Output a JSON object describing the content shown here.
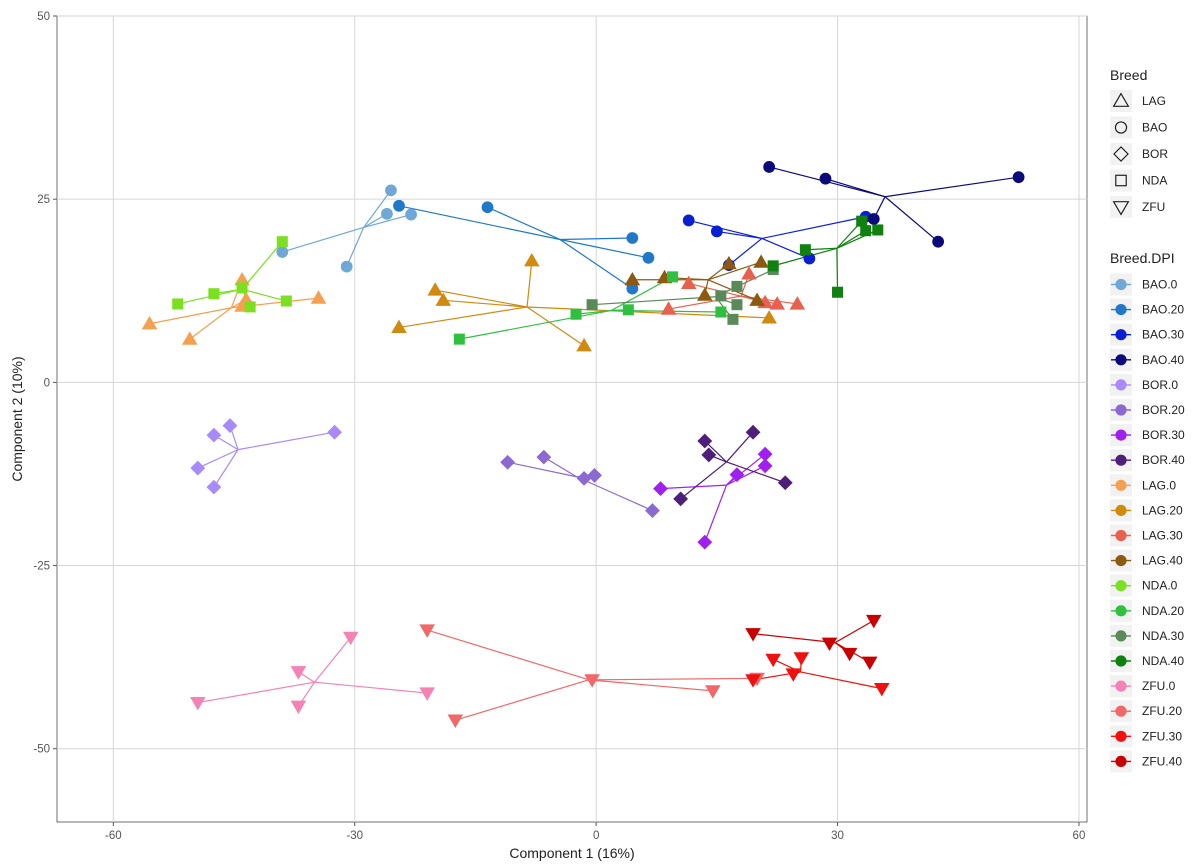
{
  "chart_data": {
    "type": "scatter",
    "title": "",
    "xlabel": "Component 1 (16%)",
    "ylabel": "Component 2 (10%)",
    "xlim": [
      -67,
      61
    ],
    "ylim": [
      -60,
      50
    ],
    "x_ticks": [
      -60,
      -30,
      0,
      30,
      60
    ],
    "y_ticks": [
      -50,
      -25,
      0,
      25,
      50
    ],
    "x_tick_labels": [
      "-60",
      "-30",
      "0",
      "30",
      "60"
    ],
    "y_tick_labels": [
      "-50",
      "-25",
      "0",
      "25",
      "50"
    ],
    "grid": true,
    "legend_position": "right",
    "legends": {
      "shape_title": "Breed",
      "shapes": [
        {
          "label": "LAG",
          "shape": "triangle-up"
        },
        {
          "label": "BAO",
          "shape": "circle"
        },
        {
          "label": "BOR",
          "shape": "diamond"
        },
        {
          "label": "NDA",
          "shape": "square"
        },
        {
          "label": "ZFU",
          "shape": "triangle-down"
        }
      ],
      "color_title": "Breed.DPI"
    },
    "series": [
      {
        "name": "BAO.0",
        "color": "#6fa8d6",
        "shape": "circle",
        "points": [
          [
            -25.5,
            26.2
          ],
          [
            -26,
            23
          ],
          [
            -23,
            22.9
          ],
          [
            -31,
            15.8
          ],
          [
            -39,
            17.8
          ]
        ]
      },
      {
        "name": "BAO.20",
        "color": "#1f78c8",
        "shape": "circle",
        "points": [
          [
            -24.5,
            24.1
          ],
          [
            -13.5,
            23.9
          ],
          [
            4.5,
            19.7
          ],
          [
            6.5,
            17.0
          ],
          [
            4.5,
            12.8
          ]
        ]
      },
      {
        "name": "BAO.30",
        "color": "#0a1fd4",
        "shape": "circle",
        "points": [
          [
            11.5,
            22.1
          ],
          [
            15,
            20.6
          ],
          [
            16.5,
            16.0
          ],
          [
            26.5,
            16.9
          ],
          [
            33.5,
            22.6
          ]
        ]
      },
      {
        "name": "BAO.40",
        "color": "#0a0a7a",
        "shape": "circle",
        "points": [
          [
            21.5,
            29.4
          ],
          [
            28.5,
            27.8
          ],
          [
            34.5,
            22.3
          ],
          [
            42.5,
            19.2
          ],
          [
            52.5,
            28.0
          ]
        ]
      },
      {
        "name": "BOR.0",
        "color": "#a78bfa",
        "shape": "diamond",
        "points": [
          [
            -47.5,
            -7.2
          ],
          [
            -45.5,
            -5.9
          ],
          [
            -49.5,
            -11.7
          ],
          [
            -47.5,
            -14.3
          ],
          [
            -32.5,
            -6.8
          ]
        ]
      },
      {
        "name": "BOR.20",
        "color": "#8a6ad0",
        "shape": "diamond",
        "points": [
          [
            -11,
            -10.9
          ],
          [
            -6.5,
            -10.2
          ],
          [
            -1.5,
            -13.1
          ],
          [
            -0.2,
            -12.7
          ],
          [
            7,
            -17.5
          ]
        ]
      },
      {
        "name": "BOR.30",
        "color": "#a020f0",
        "shape": "diamond",
        "points": [
          [
            8,
            -14.5
          ],
          [
            13.5,
            -21.8
          ],
          [
            17.5,
            -12.6
          ],
          [
            21,
            -9.8
          ],
          [
            21,
            -11.4
          ]
        ]
      },
      {
        "name": "BOR.40",
        "color": "#4d1f7a",
        "shape": "diamond",
        "points": [
          [
            10.5,
            -15.9
          ],
          [
            13.5,
            -8.0
          ],
          [
            14,
            -9.9
          ],
          [
            19.5,
            -6.8
          ],
          [
            23.5,
            -13.7
          ]
        ]
      },
      {
        "name": "LAG.0",
        "color": "#f5a050",
        "shape": "triangle-up",
        "points": [
          [
            -55.5,
            8.0
          ],
          [
            -50.5,
            5.9
          ],
          [
            -44,
            14.0
          ],
          [
            -43.5,
            11.3
          ],
          [
            -44,
            10.4
          ],
          [
            -34.5,
            11.5
          ]
        ]
      },
      {
        "name": "LAG.20",
        "color": "#d08a10",
        "shape": "triangle-up",
        "points": [
          [
            -24.5,
            7.5
          ],
          [
            -20,
            12.6
          ],
          [
            -19,
            11.2
          ],
          [
            -8,
            16.6
          ],
          [
            -1.5,
            5.0
          ],
          [
            21.5,
            8.8
          ]
        ]
      },
      {
        "name": "LAG.30",
        "color": "#e86050",
        "shape": "triangle-up",
        "points": [
          [
            9,
            10.0
          ],
          [
            11.5,
            13.5
          ],
          [
            19,
            14.8
          ],
          [
            21,
            10.9
          ],
          [
            22.5,
            10.7
          ],
          [
            25,
            10.7
          ]
        ]
      },
      {
        "name": "LAG.40",
        "color": "#8b5a10",
        "shape": "triangle-up",
        "points": [
          [
            4.5,
            14.0
          ],
          [
            8.5,
            14.3
          ],
          [
            13.5,
            11.9
          ],
          [
            16.5,
            16.2
          ],
          [
            20.5,
            16.4
          ],
          [
            20,
            11.2
          ]
        ]
      },
      {
        "name": "NDA.0",
        "color": "#7ae020",
        "shape": "square",
        "points": [
          [
            -52,
            10.7
          ],
          [
            -47.5,
            12.1
          ],
          [
            -44,
            12.9
          ],
          [
            -43,
            10.3
          ],
          [
            -39,
            19.2
          ],
          [
            -38.5,
            11.1
          ]
        ]
      },
      {
        "name": "NDA.20",
        "color": "#30c040",
        "shape": "square",
        "points": [
          [
            -17,
            5.9
          ],
          [
            -2.5,
            9.3
          ],
          [
            4,
            9.9
          ],
          [
            9.5,
            14.4
          ],
          [
            15.5,
            9.6
          ]
        ]
      },
      {
        "name": "NDA.30",
        "color": "#5a8a5a",
        "shape": "square",
        "points": [
          [
            -0.5,
            10.6
          ],
          [
            15.5,
            11.8
          ],
          [
            17,
            8.6
          ],
          [
            17.5,
            13.1
          ],
          [
            17.5,
            10.6
          ],
          [
            22,
            15.4
          ]
        ]
      },
      {
        "name": "NDA.40",
        "color": "#108010",
        "shape": "square",
        "points": [
          [
            22,
            15.9
          ],
          [
            26,
            18.1
          ],
          [
            30,
            12.3
          ],
          [
            33,
            22.0
          ],
          [
            33.5,
            20.7
          ],
          [
            35,
            20.8
          ]
        ]
      },
      {
        "name": "ZFU.0",
        "color": "#f582b4",
        "shape": "triangle-down",
        "points": [
          [
            -49.5,
            -43.7
          ],
          [
            -37,
            -39.5
          ],
          [
            -37,
            -44.2
          ],
          [
            -30.5,
            -34.8
          ],
          [
            -21,
            -42.4
          ]
        ]
      },
      {
        "name": "ZFU.20",
        "color": "#f06868",
        "shape": "triangle-down",
        "points": [
          [
            -21,
            -33.8
          ],
          [
            -17.5,
            -46.1
          ],
          [
            -0.5,
            -40.6
          ],
          [
            14.5,
            -42.1
          ],
          [
            20,
            -40.4
          ]
        ]
      },
      {
        "name": "ZFU.30",
        "color": "#f01010",
        "shape": "triangle-down",
        "points": [
          [
            19.5,
            -40.6
          ],
          [
            22,
            -37.8
          ],
          [
            24.5,
            -39.8
          ],
          [
            25.5,
            -37.6
          ],
          [
            35.5,
            -41.8
          ]
        ]
      },
      {
        "name": "ZFU.40",
        "color": "#c80000",
        "shape": "triangle-down",
        "points": [
          [
            19.5,
            -34.3
          ],
          [
            29,
            -35.6
          ],
          [
            31.5,
            -37.0
          ],
          [
            34,
            -38.2
          ],
          [
            34.5,
            -32.5
          ]
        ]
      }
    ]
  }
}
